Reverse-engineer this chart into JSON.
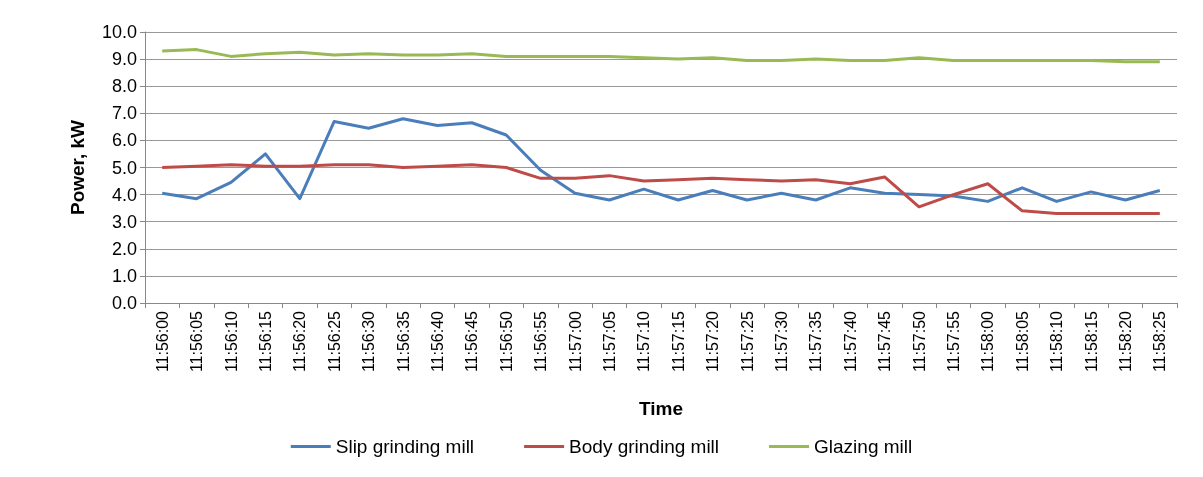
{
  "chart_data": {
    "type": "line",
    "xlabel": "Time",
    "ylabel": "Power, kW",
    "categories": [
      "11:56:00",
      "11:56:05",
      "11:56:10",
      "11:56:15",
      "11:56:20",
      "11:56:25",
      "11:56:30",
      "11:56:35",
      "11:56:40",
      "11:56:45",
      "11:56:50",
      "11:56:55",
      "11:57:00",
      "11:57:05",
      "11:57:10",
      "11:57:15",
      "11:57:20",
      "11:57:25",
      "11:57:30",
      "11:57:35",
      "11:57:40",
      "11:57:45",
      "11:57:50",
      "11:57:55",
      "11:58:00",
      "11:58:05",
      "11:58:10",
      "11:58:15",
      "11:58:20",
      "11:58:25"
    ],
    "series": [
      {
        "name": "Slip grinding mill",
        "color": "#4a7ebb",
        "values": [
          4.05,
          3.85,
          4.45,
          5.5,
          3.85,
          6.7,
          6.45,
          6.8,
          6.55,
          6.65,
          6.2,
          4.9,
          4.05,
          3.8,
          4.2,
          3.8,
          4.15,
          3.8,
          4.05,
          3.8,
          4.25,
          4.05,
          4.0,
          3.95,
          3.75,
          4.25,
          3.75,
          4.1,
          3.8,
          4.15
        ]
      },
      {
        "name": "Body grinding mill",
        "color": "#be4b48",
        "values": [
          5.0,
          5.05,
          5.1,
          5.05,
          5.05,
          5.1,
          5.1,
          5.0,
          5.05,
          5.1,
          5.0,
          4.6,
          4.6,
          4.7,
          4.5,
          4.55,
          4.6,
          4.55,
          4.5,
          4.55,
          4.4,
          4.65,
          3.55,
          4.0,
          4.4,
          3.4,
          3.3,
          3.3,
          3.3,
          3.3
        ]
      },
      {
        "name": "Glazing mill",
        "color": "#98b954",
        "values": [
          9.3,
          9.35,
          9.1,
          9.2,
          9.25,
          9.15,
          9.2,
          9.15,
          9.15,
          9.2,
          9.1,
          9.1,
          9.1,
          9.1,
          9.05,
          9.0,
          9.05,
          8.95,
          8.95,
          9.0,
          8.95,
          8.95,
          9.05,
          8.95,
          8.95,
          8.95,
          8.95,
          8.95,
          8.9,
          8.9
        ]
      }
    ],
    "ylim": [
      0,
      10
    ],
    "yticks": [
      {
        "value": 0,
        "label": "0.0"
      },
      {
        "value": 1,
        "label": "1.0"
      },
      {
        "value": 2,
        "label": "2.0"
      },
      {
        "value": 3,
        "label": "3.0"
      },
      {
        "value": 4,
        "label": "4.0"
      },
      {
        "value": 5,
        "label": "5.0"
      },
      {
        "value": 6,
        "label": "6.0"
      },
      {
        "value": 7,
        "label": "7.0"
      },
      {
        "value": 8,
        "label": "8.0"
      },
      {
        "value": 9,
        "label": "9.0"
      },
      {
        "value": 10,
        "label": "10.0"
      }
    ],
    "grid": "y",
    "legend": "bottom",
    "marker": "none",
    "line_style": "solid"
  }
}
